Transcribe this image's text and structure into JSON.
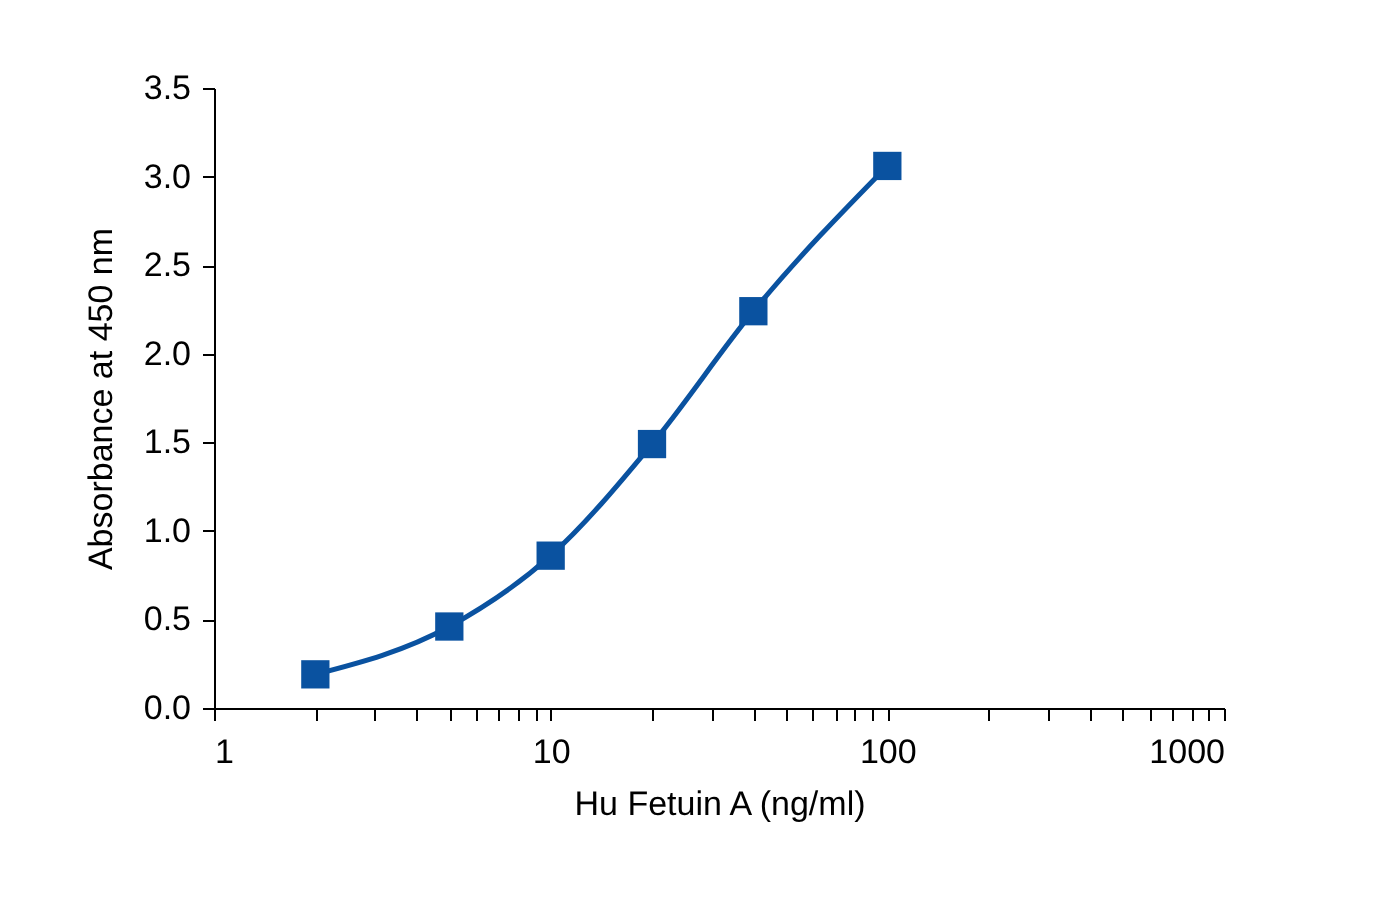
{
  "chart_data": {
    "type": "scatter",
    "xlabel": "Hu Fetuin A (ng/ml)",
    "ylabel": "Absorbance at 450 nm",
    "log": "x",
    "grid": false,
    "xlim": [
      1,
      1000
    ],
    "xticks": [
      1,
      {
        "value": 2,
        "label": null
      },
      {
        "value": 3,
        "label": null
      },
      {
        "value": 4,
        "label": null
      },
      {
        "value": 5,
        "label": null
      },
      {
        "value": 6,
        "label": null
      },
      {
        "value": 7,
        "label": null
      },
      {
        "value": 8,
        "label": null
      },
      {
        "value": 9,
        "label": null
      },
      10,
      {
        "value": 20,
        "label": null
      },
      {
        "value": 30,
        "label": null
      },
      {
        "value": 40,
        "label": null
      },
      {
        "value": 50,
        "label": null
      },
      {
        "value": 60,
        "label": null
      },
      {
        "value": 70,
        "label": null
      },
      {
        "value": 80,
        "label": null
      },
      {
        "value": 90,
        "label": null
      },
      100,
      {
        "value": 200,
        "label": null
      },
      {
        "value": 300,
        "label": null
      },
      {
        "value": 400,
        "label": null
      },
      {
        "value": 500,
        "label": null
      },
      {
        "value": 600,
        "label": null
      },
      {
        "value": 700,
        "label": null
      },
      {
        "value": 800,
        "label": null
      },
      {
        "value": 900,
        "label": null
      },
      1000
    ],
    "ylim": [
      0,
      3.5
    ],
    "yticks": [
      {
        "value": 0,
        "label": "0.0"
      },
      {
        "value": 0.5,
        "label": "0.5"
      },
      {
        "value": 1,
        "label": "1.0"
      },
      {
        "value": 1.5,
        "label": "1.5"
      },
      {
        "value": 2,
        "label": "2.0"
      },
      {
        "value": 2.5,
        "label": "2.5"
      },
      {
        "value": 3,
        "label": "3.0"
      },
      {
        "value": 3.5,
        "label": "3.5"
      }
    ],
    "series": [
      {
        "type": "line",
        "color": "#0a52a0",
        "x": [
          2,
          5,
          10,
          20,
          40,
          100
        ],
        "values": [
          0.19,
          0.46,
          0.86,
          1.49,
          2.24,
          3.06
        ],
        "marker": "none",
        "line_style": "solid"
      },
      {
        "color": "#0a52a0",
        "x": [
          2,
          5,
          10,
          20,
          40,
          100
        ],
        "values": [
          0.19,
          0.46,
          0.86,
          1.49,
          2.24,
          3.06
        ],
        "marker": "square"
      }
    ]
  }
}
